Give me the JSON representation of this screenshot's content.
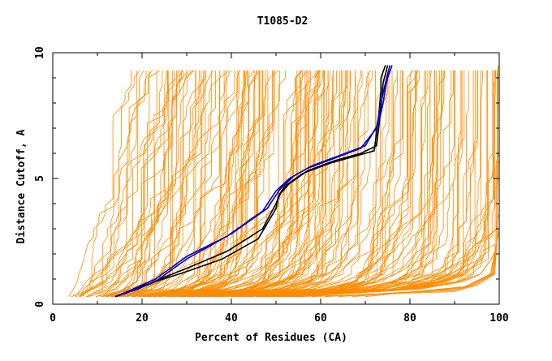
{
  "chart_data": {
    "type": "line",
    "title": "T1085-D2",
    "xlabel": "Percent of Residues (CA)",
    "ylabel": "Distance Cutoff, A",
    "xlim": [
      0,
      100
    ],
    "ylim": [
      0,
      10
    ],
    "x_ticks": [
      0,
      20,
      40,
      60,
      80,
      100
    ],
    "y_ticks": [
      0,
      5,
      10
    ],
    "grid": false,
    "colors": {
      "background_models": "#ff8c00",
      "highlight_black": "#000000",
      "highlight_blue": "#0000cc"
    },
    "background_models": {
      "count": 180,
      "note_fanning": "orange GDT curves spread between the left-most and right-most bundles"
    },
    "envelopes": {
      "left": [
        [
          3.2,
          0.3
        ],
        [
          5,
          0.8
        ],
        [
          6.5,
          1.5
        ],
        [
          8,
          2.5
        ],
        [
          10,
          4
        ],
        [
          12,
          6
        ],
        [
          14,
          8
        ],
        [
          16,
          9.5
        ]
      ],
      "right": [
        [
          55,
          0.3
        ],
        [
          80,
          0.5
        ],
        [
          95,
          1.0
        ],
        [
          99,
          2.0
        ],
        [
          100,
          3
        ],
        [
          100,
          6
        ],
        [
          100,
          9.5
        ]
      ]
    },
    "highlighted_series": [
      {
        "color": "black",
        "x": [
          14,
          18,
          23,
          30,
          38,
          46,
          50,
          50.5,
          52,
          56,
          62,
          68,
          72,
          72.5,
          73,
          73.5,
          73.5,
          74.5
        ],
        "y": [
          0.3,
          0.6,
          0.9,
          1.3,
          1.8,
          2.6,
          3.8,
          4.3,
          4.7,
          5.2,
          5.6,
          5.9,
          6.1,
          6.8,
          7.5,
          8.5,
          9.0,
          9.5
        ]
      },
      {
        "color": "black",
        "x": [
          14,
          19,
          24,
          31,
          39,
          47,
          50,
          51,
          53,
          57,
          63,
          69,
          72.5,
          73,
          73.5,
          74,
          75
        ],
        "y": [
          0.3,
          0.6,
          1.0,
          1.5,
          2.1,
          3.0,
          4.0,
          4.4,
          4.8,
          5.3,
          5.7,
          6.0,
          6.3,
          7.0,
          7.8,
          8.8,
          9.5
        ]
      },
      {
        "color": "blue",
        "x": [
          14,
          19,
          23,
          30,
          40,
          48,
          51,
          54,
          58,
          64,
          70,
          73,
          74,
          74.5,
          75,
          76
        ],
        "y": [
          0.3,
          0.6,
          0.9,
          1.8,
          2.8,
          3.8,
          4.6,
          5.1,
          5.5,
          5.9,
          6.3,
          7.2,
          8.0,
          8.6,
          9.0,
          9.5
        ]
      },
      {
        "color": "blue",
        "x": [
          14,
          18,
          23,
          30,
          39,
          47,
          50,
          53,
          57,
          63,
          69,
          72.5,
          73.5,
          74.5,
          75.5
        ],
        "y": [
          0.3,
          0.6,
          1.0,
          1.9,
          2.7,
          3.7,
          4.5,
          5.0,
          5.4,
          5.8,
          6.2,
          7.0,
          8.0,
          8.8,
          9.5
        ]
      }
    ]
  }
}
